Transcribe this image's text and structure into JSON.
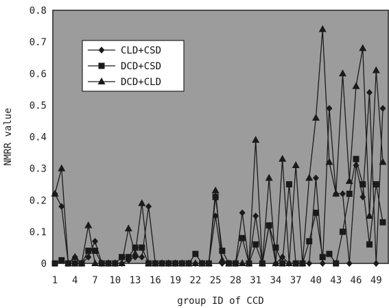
{
  "chart_data": {
    "type": "line",
    "xlabel": "group ID of CCD",
    "ylabel": "NMRR value",
    "ylim": [
      0,
      0.8
    ],
    "yticks": [
      "0",
      "0.1",
      "0.2",
      "0.3",
      "0.4",
      "0.5",
      "0.6",
      "0.7",
      "0.8"
    ],
    "yticks_values": [
      0,
      0.1,
      0.2,
      0.3,
      0.4,
      0.5,
      0.6,
      0.7,
      0.8
    ],
    "xlim": [
      1,
      50
    ],
    "xticks": [
      "1",
      "4",
      "7",
      "10",
      "13",
      "16",
      "19",
      "22",
      "25",
      "28",
      "31",
      "34",
      "37",
      "40",
      "43",
      "46",
      "49"
    ],
    "xticks_values": [
      1,
      4,
      7,
      10,
      13,
      16,
      19,
      22,
      25,
      28,
      31,
      34,
      37,
      40,
      43,
      46,
      49
    ],
    "grid": false,
    "legend_position": "top-left",
    "plot_background": "#9c9c9c",
    "line_color": "#1a1a1a",
    "x": [
      1,
      2,
      3,
      4,
      5,
      6,
      7,
      8,
      9,
      10,
      11,
      12,
      13,
      14,
      15,
      16,
      17,
      18,
      19,
      20,
      21,
      22,
      23,
      24,
      25,
      26,
      27,
      28,
      29,
      30,
      31,
      32,
      33,
      34,
      35,
      36,
      37,
      38,
      39,
      40,
      41,
      42,
      43,
      44,
      45,
      46,
      47,
      48,
      49,
      50
    ],
    "series": [
      {
        "name": "CLD+CSD",
        "marker": "diamond",
        "values": [
          0.22,
          0.18,
          0,
          0.02,
          0,
          0.02,
          0.07,
          0,
          0,
          0,
          0,
          0.01,
          0.02,
          0.02,
          0.18,
          0,
          0,
          0,
          0,
          0,
          0,
          0,
          0,
          0,
          0.15,
          0,
          0,
          0,
          0.16,
          0,
          0.15,
          0,
          0.12,
          0,
          0.02,
          0,
          0,
          0,
          0,
          0.27,
          0,
          0.49,
          0.22,
          0.22,
          0,
          0.31,
          0.21,
          0.54,
          0,
          0.49
        ]
      },
      {
        "name": "DCD+CSD",
        "marker": "square",
        "values": [
          0,
          0.01,
          0,
          0,
          0,
          0.04,
          0.04,
          0,
          0,
          0,
          0.02,
          0.02,
          0.05,
          0.05,
          0,
          0,
          0,
          0,
          0,
          0,
          0,
          0.03,
          0,
          0,
          0.21,
          0.04,
          0,
          0,
          0.08,
          0,
          0.06,
          0,
          0.12,
          0.05,
          0,
          0.25,
          0,
          0,
          0.07,
          0.16,
          0.02,
          0.03,
          0,
          0.1,
          0.22,
          0.33,
          0.25,
          0.06,
          0.25,
          0.13
        ]
      },
      {
        "name": "DCD+CLD",
        "marker": "triangle",
        "values": [
          0.22,
          0.3,
          0,
          0.02,
          0,
          0.12,
          0,
          0,
          0,
          0,
          0,
          0.11,
          0.03,
          0.19,
          0,
          0,
          0,
          0,
          0,
          0,
          0,
          0,
          0,
          0,
          0.23,
          0.01,
          0,
          0,
          0,
          0,
          0.39,
          0,
          0.27,
          0,
          0.33,
          0,
          0.31,
          0,
          0.27,
          0.46,
          0.74,
          0.32,
          0.22,
          0.6,
          0.26,
          0.56,
          0.68,
          0.15,
          0.61,
          0.32
        ]
      }
    ]
  }
}
